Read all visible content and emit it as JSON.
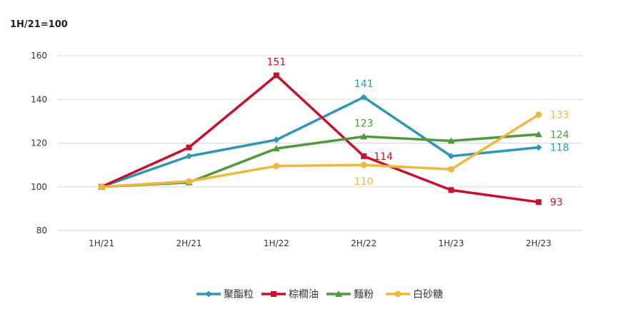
{
  "chart_data": {
    "type": "line",
    "unit_label": "1H/21=100",
    "categories": [
      "1H/21",
      "2H/21",
      "1H/22",
      "2H/22",
      "1H/23",
      "2H/23"
    ],
    "ylim": [
      80,
      160
    ],
    "yticks": [
      80,
      100,
      120,
      140,
      160
    ],
    "grid": true,
    "legend_position": "bottom",
    "series": [
      {
        "name": "聚酯粒",
        "color": "#2E96B8",
        "marker": "diamond",
        "values": [
          100,
          114,
          121.5,
          141,
          114,
          118
        ]
      },
      {
        "name": "棕櫚油",
        "color": "#C8102E",
        "marker": "square",
        "values": [
          100,
          118,
          151,
          114,
          98.5,
          93
        ]
      },
      {
        "name": "麵粉",
        "color": "#4E9A3A",
        "marker": "triangle",
        "values": [
          100,
          102,
          117.5,
          123,
          121,
          124
        ]
      },
      {
        "name": "白砂糖",
        "color": "#F0B73E",
        "marker": "circle",
        "values": [
          100,
          102.5,
          109.5,
          110,
          108,
          133
        ]
      }
    ],
    "data_labels": [
      {
        "series": 1,
        "index": 2,
        "text": "151"
      },
      {
        "series": 0,
        "index": 3,
        "text": "141"
      },
      {
        "series": 2,
        "index": 3,
        "text": "123"
      },
      {
        "series": 1,
        "index": 3,
        "text": "114"
      },
      {
        "series": 3,
        "index": 3,
        "text": "110"
      },
      {
        "series": 3,
        "index": 5,
        "text": "133"
      },
      {
        "series": 2,
        "index": 5,
        "text": "124"
      },
      {
        "series": 0,
        "index": 5,
        "text": "118"
      },
      {
        "series": 1,
        "index": 5,
        "text": "93"
      }
    ]
  }
}
